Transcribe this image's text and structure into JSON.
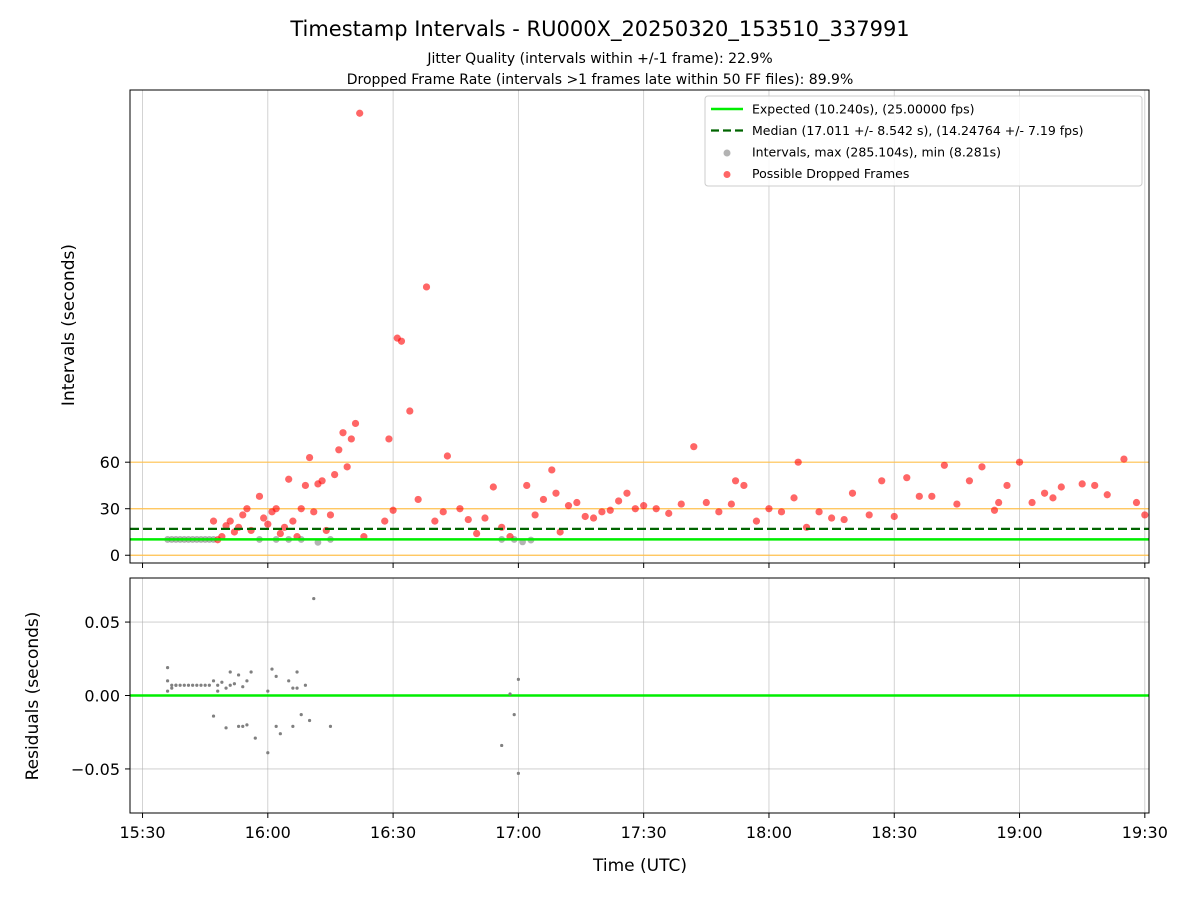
{
  "chart_data": [
    {
      "type": "scatter",
      "title": "Timestamp Intervals - RU000X_20250320_153510_337991",
      "subtitle_lines": [
        "Jitter Quality (intervals within +/-1 frame): 22.9%",
        "Dropped Frame Rate (intervals >1 frames late within 50 FF files): 89.9%"
      ],
      "ylabel": "Intervals (seconds)",
      "xlabel": "",
      "xlim": [
        "15:27",
        "19:31"
      ],
      "ylim": [
        -5,
        300
      ],
      "y_ticks": [
        0,
        30,
        60
      ],
      "y_tick_labels": [
        "0",
        "30",
        "60"
      ],
      "x_ticks": [
        "15:30",
        "16:00",
        "16:30",
        "17:00",
        "17:30",
        "18:00",
        "18:30",
        "19:00",
        "19:30"
      ],
      "grid": "vertical",
      "reference_lines": [
        {
          "value": 0,
          "color": "#ffc04d"
        },
        {
          "value": 30,
          "color": "#ffc04d"
        },
        {
          "value": 60,
          "color": "#ffc04d"
        }
      ],
      "legend_position": "upper right",
      "legend": [
        {
          "label": "Expected (10.240s), (25.00000 fps)",
          "kind": "solid-line",
          "color": "#00ee00"
        },
        {
          "label": "Median (17.011 +/- 8.542 s), (14.24764 +/- 7.19 fps)",
          "kind": "dashed-line",
          "color": "#006400"
        },
        {
          "label": "Intervals, max (285.104s), min (8.281s)",
          "kind": "dot",
          "color": "#808080"
        },
        {
          "label": "Possible Dropped Frames",
          "kind": "dot",
          "color": "#ff0000"
        }
      ],
      "expected_interval": 10.24,
      "median_interval": 17.011,
      "series": [
        {
          "name": "Intervals, max (285.104s), min (8.281s)",
          "color": "#808080",
          "x": [
            "15:36",
            "15:37",
            "15:38",
            "15:39",
            "15:40",
            "15:41",
            "15:42",
            "15:43",
            "15:44",
            "15:45",
            "15:46",
            "15:47",
            "15:58",
            "16:02",
            "16:05",
            "16:08",
            "16:12",
            "16:15",
            "16:56",
            "16:59",
            "17:01",
            "17:03"
          ],
          "y": [
            10.2,
            10.2,
            10.2,
            10.2,
            10.2,
            10.2,
            10.2,
            10.2,
            10.2,
            10.2,
            10.2,
            10.2,
            10.2,
            10.2,
            10.2,
            10.2,
            8.3,
            10.2,
            10.2,
            10.2,
            8.6,
            9.8
          ]
        },
        {
          "name": "Possible Dropped Frames",
          "color": "#ff0000",
          "x": [
            "15:47",
            "15:48",
            "15:49",
            "15:50",
            "15:51",
            "15:52",
            "15:53",
            "15:54",
            "15:55",
            "15:56",
            "15:58",
            "15:59",
            "16:00",
            "16:01",
            "16:02",
            "16:03",
            "16:04",
            "16:05",
            "16:06",
            "16:07",
            "16:08",
            "16:09",
            "16:10",
            "16:11",
            "16:12",
            "16:13",
            "16:14",
            "16:15",
            "16:16",
            "16:17",
            "16:18",
            "16:19",
            "16:20",
            "16:21",
            "16:22",
            "16:23",
            "16:28",
            "16:29",
            "16:30",
            "16:31",
            "16:32",
            "16:34",
            "16:36",
            "16:38",
            "16:40",
            "16:42",
            "16:43",
            "16:46",
            "16:48",
            "16:50",
            "16:52",
            "16:54",
            "16:56",
            "16:58",
            "17:02",
            "17:04",
            "17:06",
            "17:08",
            "17:09",
            "17:10",
            "17:12",
            "17:14",
            "17:16",
            "17:18",
            "17:20",
            "17:22",
            "17:24",
            "17:26",
            "17:28",
            "17:30",
            "17:33",
            "17:36",
            "17:39",
            "17:42",
            "17:45",
            "17:48",
            "17:51",
            "17:52",
            "17:54",
            "17:57",
            "18:00",
            "18:03",
            "18:06",
            "18:07",
            "18:09",
            "18:12",
            "18:15",
            "18:18",
            "18:20",
            "18:24",
            "18:27",
            "18:30",
            "18:33",
            "18:36",
            "18:39",
            "18:42",
            "18:45",
            "18:48",
            "18:51",
            "18:54",
            "18:55",
            "18:57",
            "19:00",
            "19:03",
            "19:06",
            "19:08",
            "19:10",
            "19:15",
            "19:18",
            "19:21",
            "19:25",
            "19:28",
            "19:30"
          ],
          "y": [
            22,
            10,
            12,
            19,
            22,
            15,
            18,
            26,
            30,
            16,
            38,
            24,
            20,
            28,
            30,
            14,
            18,
            49,
            22,
            12,
            30,
            45,
            63,
            28,
            46,
            48,
            16,
            26,
            52,
            68,
            79,
            57,
            75,
            85,
            285,
            12,
            22,
            75,
            29,
            140,
            138,
            93,
            36,
            173,
            22,
            28,
            64,
            30,
            23,
            14,
            24,
            44,
            18,
            12,
            45,
            26,
            36,
            55,
            40,
            15,
            32,
            34,
            25,
            24,
            28,
            29,
            35,
            40,
            30,
            32,
            30,
            27,
            33,
            70,
            34,
            28,
            33,
            48,
            45,
            22,
            30,
            28,
            37,
            60,
            18,
            28,
            24,
            23,
            40,
            26,
            48,
            25,
            50,
            38,
            38,
            58,
            33,
            48,
            57,
            29,
            34,
            45,
            60,
            34,
            40,
            37,
            44,
            46,
            45,
            39,
            62,
            34,
            26
          ]
        }
      ]
    },
    {
      "type": "scatter",
      "title": "",
      "xlabel": "Time (UTC)",
      "ylabel": "Residuals (seconds)",
      "xlim": [
        "15:27",
        "19:31"
      ],
      "ylim": [
        -0.08,
        0.08
      ],
      "y_ticks": [
        0.05,
        0.0,
        -0.05
      ],
      "y_tick_labels": [
        "0.05",
        "0.00",
        "−0.05"
      ],
      "x_ticks": [
        "15:30",
        "16:00",
        "16:30",
        "17:00",
        "17:30",
        "18:00",
        "18:30",
        "19:00",
        "19:30"
      ],
      "x_tick_labels": [
        "15:30",
        "16:00",
        "16:30",
        "17:00",
        "17:30",
        "18:00",
        "18:30",
        "19:00",
        "19:30"
      ],
      "grid": "both",
      "reference_lines": [
        {
          "value": 0.0,
          "color": "#00ee00"
        }
      ],
      "series": [
        {
          "name": "",
          "color": "#808080",
          "x": [
            "15:36",
            "15:36",
            "15:36",
            "15:37",
            "15:37",
            "15:38",
            "15:38",
            "15:39",
            "15:40",
            "15:41",
            "15:42",
            "15:43",
            "15:44",
            "15:45",
            "15:46",
            "15:47",
            "15:47",
            "15:48",
            "15:48",
            "15:49",
            "15:50",
            "15:50",
            "15:51",
            "15:51",
            "15:52",
            "15:53",
            "15:53",
            "15:54",
            "15:54",
            "15:55",
            "15:55",
            "15:56",
            "15:57",
            "16:00",
            "16:00",
            "16:01",
            "16:02",
            "16:02",
            "16:03",
            "16:05",
            "16:06",
            "16:06",
            "16:07",
            "16:07",
            "16:08",
            "16:09",
            "16:10",
            "16:11",
            "16:15",
            "16:56",
            "16:58",
            "16:59",
            "17:00",
            "17:00"
          ],
          "y": [
            0.019,
            0.003,
            0.01,
            0.007,
            0.005,
            0.007,
            0.007,
            0.007,
            0.007,
            0.007,
            0.007,
            0.007,
            0.007,
            0.007,
            0.007,
            0.01,
            -0.014,
            0.003,
            0.007,
            0.009,
            0.005,
            -0.022,
            0.016,
            0.007,
            0.008,
            0.014,
            -0.021,
            0.006,
            -0.021,
            0.01,
            -0.02,
            0.016,
            -0.029,
            -0.039,
            0.003,
            0.018,
            -0.021,
            0.013,
            -0.026,
            0.01,
            0.005,
            -0.021,
            0.005,
            0.016,
            -0.013,
            0.007,
            -0.017,
            0.066,
            -0.021,
            -0.034,
            0.001,
            -0.013,
            -0.053,
            0.011
          ]
        }
      ]
    }
  ]
}
